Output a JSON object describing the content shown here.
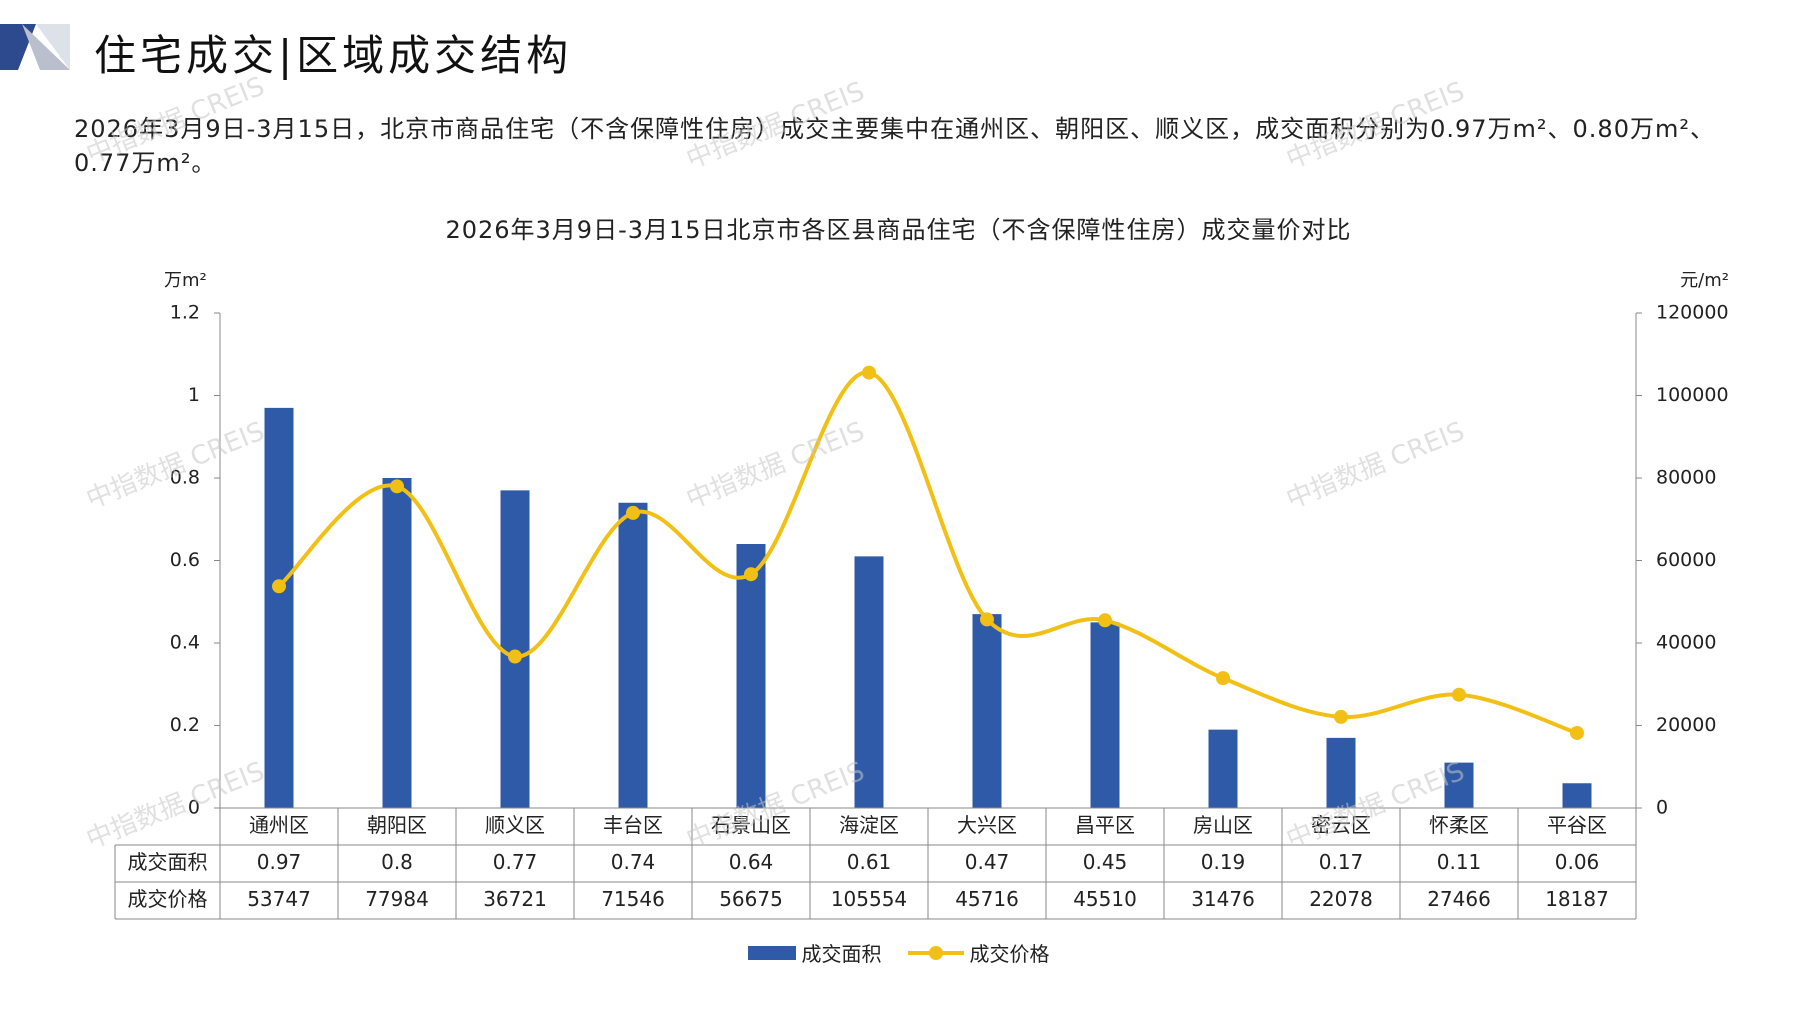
{
  "header": {
    "title": "住宅成交|区域成交结构"
  },
  "summary": "2026年3月9日-3月15日，北京市商品住宅（不含保障性住房）成交主要集中在通州区、朝阳区、顺义区，成交面积分别为0.97万m²、0.80万m²、0.77万m²。",
  "watermark": "中指数据 CREIS",
  "colors": {
    "bar": "#2E5AA8",
    "line": "#F2C014",
    "logo_dark": "#2E4A8F",
    "logo_light": "#B9BFCC"
  },
  "chart_data": {
    "type": "bar",
    "title": "2026年3月9日-3月15日北京市各区县商品住宅（不含保障性住房）成交量价对比",
    "y_left_unit": "万m²",
    "y_right_unit": "元/m²",
    "ylim_left": [
      0,
      1.2
    ],
    "ylim_right": [
      0,
      120000
    ],
    "y_left_ticks": [
      "0",
      "0.2",
      "0.4",
      "0.6",
      "0.8",
      "1",
      "1.2"
    ],
    "y_right_ticks": [
      "0",
      "20000",
      "40000",
      "60000",
      "80000",
      "100000",
      "120000"
    ],
    "categories": [
      "通州区",
      "朝阳区",
      "顺义区",
      "丰台区",
      "石景山区",
      "海淀区",
      "大兴区",
      "昌平区",
      "房山区",
      "密云区",
      "怀柔区",
      "平谷区"
    ],
    "series": [
      {
        "name": "成交面积",
        "type": "bar",
        "axis": "left",
        "values": [
          0.97,
          0.8,
          0.77,
          0.74,
          0.64,
          0.61,
          0.47,
          0.45,
          0.19,
          0.17,
          0.11,
          0.06
        ]
      },
      {
        "name": "成交价格",
        "type": "line",
        "axis": "right",
        "values": [
          53747,
          77984,
          36721,
          71546,
          56675,
          105554,
          45716,
          45510,
          31476,
          22078,
          27466,
          18187
        ]
      }
    ],
    "table_rows": [
      {
        "label": "成交面积",
        "cells": [
          "0.97",
          "0.8",
          "0.77",
          "0.74",
          "0.64",
          "0.61",
          "0.47",
          "0.45",
          "0.19",
          "0.17",
          "0.11",
          "0.06"
        ]
      },
      {
        "label": "成交价格",
        "cells": [
          "53747",
          "77984",
          "36721",
          "71546",
          "56675",
          "105554",
          "45716",
          "45510",
          "31476",
          "22078",
          "27466",
          "18187"
        ]
      }
    ],
    "legend": [
      "成交面积",
      "成交价格"
    ],
    "legend_position": "bottom"
  }
}
